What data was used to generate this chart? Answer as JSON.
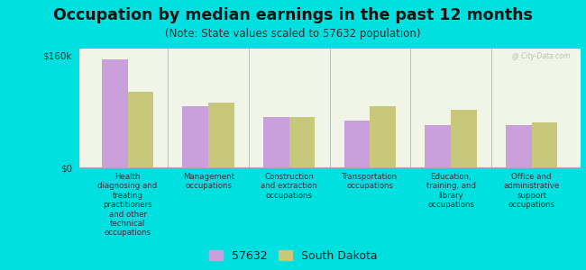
{
  "title": "Occupation by median earnings in the past 12 months",
  "subtitle": "(Note: State values scaled to 57632 population)",
  "background_color": "#00e0e0",
  "plot_bg_color": "#f0f5e8",
  "categories": [
    "Health\ndiagnosing and\ntreating\npractitioners\nand other\ntechnical\noccupations",
    "Management\noccupations",
    "Construction\nand extraction\noccupations",
    "Transportation\noccupations",
    "Education,\ntraining, and\nlibrary\noccupations",
    "Office and\nadministrative\nsupport\noccupations"
  ],
  "values_57632": [
    155000,
    88000,
    72000,
    67000,
    60000,
    60000
  ],
  "values_sd": [
    108000,
    93000,
    72000,
    88000,
    82000,
    65000
  ],
  "color_57632": "#c9a0dc",
  "color_sd": "#c8c87a",
  "ylim_max": 170000,
  "ytick_val": 160000,
  "ytick_label_160": "$160k",
  "ytick_label_0": "$0",
  "legend_label_1": "57632",
  "legend_label_2": "South Dakota",
  "bar_width": 0.32,
  "title_fontsize": 12.5,
  "subtitle_fontsize": 8.5,
  "tick_fontsize": 7.5,
  "legend_fontsize": 9,
  "watermark": "@ City-Data.com"
}
